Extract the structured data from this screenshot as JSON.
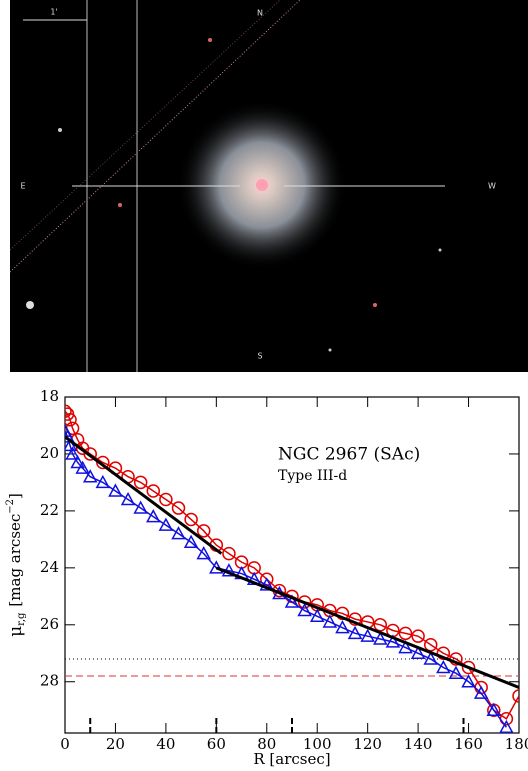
{
  "image": {
    "scale_label": "1'",
    "north": "N",
    "east": "E",
    "west": "W",
    "south": "S"
  },
  "chart_data": {
    "type": "line",
    "title": "NGC 2967 (SAc)",
    "subtitle": "Type III-d",
    "xlabel": "R [arcsec]",
    "ylabel": {
      "symbol": "μ",
      "subscript": "r,g",
      "text": "[mag arcsec",
      "exponent": "−2",
      "close": "]"
    },
    "xlim": [
      0,
      180
    ],
    "xticks": [
      0,
      20,
      40,
      60,
      80,
      100,
      120,
      140,
      160,
      180
    ],
    "ylim": [
      29.8,
      18
    ],
    "yticks": [
      18,
      20,
      22,
      24,
      26,
      28
    ],
    "series": [
      {
        "color": "#e00000",
        "marker": "circle",
        "x": [
          0,
          1,
          2,
          3,
          5,
          7,
          10,
          15,
          20,
          25,
          30,
          35,
          40,
          45,
          50,
          55,
          60,
          65,
          70,
          75,
          80,
          85,
          90,
          95,
          100,
          105,
          110,
          115,
          120,
          125,
          130,
          135,
          140,
          145,
          150,
          155,
          160,
          165,
          170,
          175,
          180
        ],
        "values": [
          18.5,
          18.6,
          18.8,
          19.1,
          19.5,
          19.8,
          20.0,
          20.3,
          20.5,
          20.8,
          21.0,
          21.3,
          21.6,
          21.9,
          22.3,
          22.7,
          23.2,
          23.5,
          23.8,
          24.0,
          24.4,
          24.8,
          25.0,
          25.2,
          25.3,
          25.5,
          25.6,
          25.8,
          25.9,
          26.0,
          26.2,
          26.3,
          26.4,
          26.7,
          27.0,
          27.2,
          27.5,
          28.2,
          29.0,
          29.3,
          28.5
        ]
      },
      {
        "color": "#1010e0",
        "marker": "triangle",
        "x": [
          0,
          1,
          2,
          3,
          5,
          7,
          10,
          15,
          20,
          25,
          30,
          35,
          40,
          45,
          50,
          55,
          60,
          65,
          70,
          75,
          80,
          85,
          90,
          95,
          100,
          105,
          110,
          115,
          120,
          125,
          130,
          135,
          140,
          145,
          150,
          155,
          160,
          165,
          170,
          175
        ],
        "values": [
          19.2,
          19.4,
          19.7,
          20.0,
          20.3,
          20.5,
          20.8,
          21.0,
          21.3,
          21.6,
          21.9,
          22.2,
          22.5,
          22.8,
          23.1,
          23.5,
          24.0,
          24.1,
          24.2,
          24.4,
          24.6,
          24.9,
          25.2,
          25.5,
          25.7,
          25.9,
          26.1,
          26.3,
          26.4,
          26.5,
          26.6,
          26.8,
          27.0,
          27.2,
          27.5,
          27.7,
          28.0,
          28.4,
          29.0,
          29.6
        ]
      },
      {
        "color": "#000000",
        "marker": "none",
        "x": [
          0,
          62
        ],
        "values": [
          19.4,
          23.5
        ]
      },
      {
        "color": "#000000",
        "marker": "none",
        "x": [
          60,
          180
        ],
        "values": [
          24.0,
          28.2
        ]
      }
    ],
    "hlines": [
      {
        "value": 27.2,
        "color": "#000000",
        "style": "dotted"
      },
      {
        "value": 27.8,
        "color": "#e03030",
        "style": "dashed"
      }
    ],
    "xmarks": [
      10,
      60,
      90,
      158
    ]
  }
}
